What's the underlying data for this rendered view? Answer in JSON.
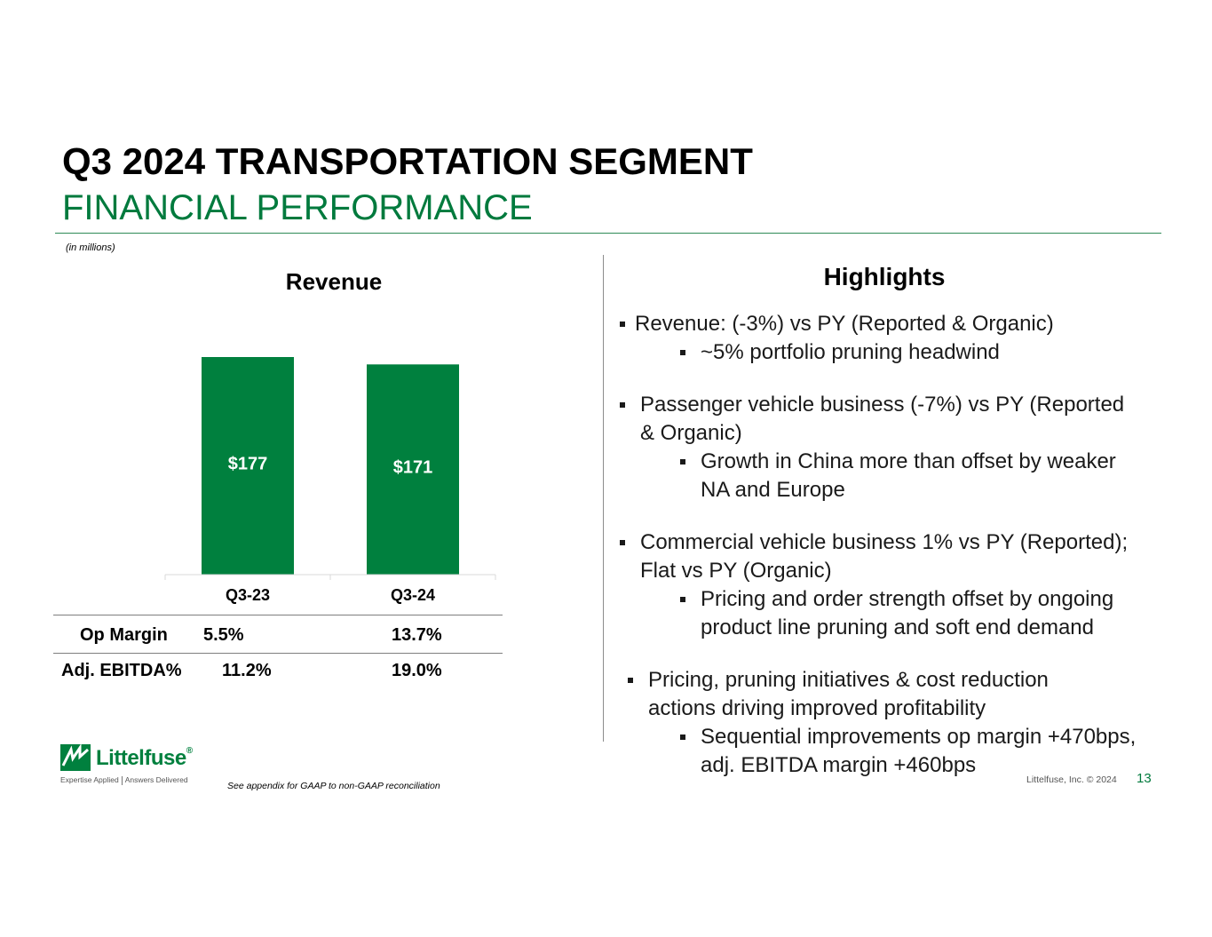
{
  "slide": {
    "title": "Q3 2024 TRANSPORTATION SEGMENT",
    "subtitle": "FINANCIAL PERFORMANCE",
    "units_note": "(in millions)",
    "appendix_note": "See appendix for GAAP to non-GAAP reconciliation",
    "copyright": "Littelfuse, Inc. © 2024",
    "page_number": "13",
    "accent_color": "#007A3D"
  },
  "logo": {
    "name": "Littelfuse",
    "registered": "®",
    "tagline_left": "Expertise Applied",
    "tagline_right": "Answers Delivered",
    "icon": "littelfuse-logo-icon"
  },
  "revenue": {
    "title": "Revenue",
    "metrics": [
      {
        "label": "Op Margin",
        "values": [
          "5.5%",
          "13.7%"
        ]
      },
      {
        "label": "Adj. EBITDA%",
        "values": [
          "11.2%",
          "19.0%"
        ]
      }
    ]
  },
  "chart_data": {
    "type": "bar",
    "title": "Revenue",
    "categories": [
      "Q3-23",
      "Q3-24"
    ],
    "values": [
      177,
      171
    ],
    "data_labels": [
      "$177",
      "$171"
    ],
    "bar_color": "#00803E",
    "ylim": [
      0,
      177
    ],
    "grid": false,
    "legend": "none"
  },
  "highlights": {
    "title": "Highlights",
    "bullets": [
      {
        "lines": [
          "Revenue: (-3%) vs PY (Reported & Organic)"
        ],
        "subs": [
          [
            "~5% portfolio pruning headwind"
          ]
        ]
      },
      {
        "lines": [
          "Passenger vehicle business (-7%) vs PY (Reported",
          "& Organic)"
        ],
        "subs": [
          [
            "Growth in China more than offset by weaker",
            "NA and Europe"
          ]
        ]
      },
      {
        "lines": [
          "Commercial vehicle business 1% vs PY (Reported);",
          "Flat vs PY (Organic)"
        ],
        "subs": [
          [
            "Pricing and order strength offset by ongoing",
            "product line pruning and soft end demand"
          ]
        ]
      },
      {
        "lines": [
          "Pricing, pruning initiatives & cost reduction",
          "actions driving improved profitability"
        ],
        "subs": [
          [
            "Sequential improvements op margin +470bps,",
            "adj. EBITDA margin +460bps"
          ]
        ]
      }
    ]
  }
}
